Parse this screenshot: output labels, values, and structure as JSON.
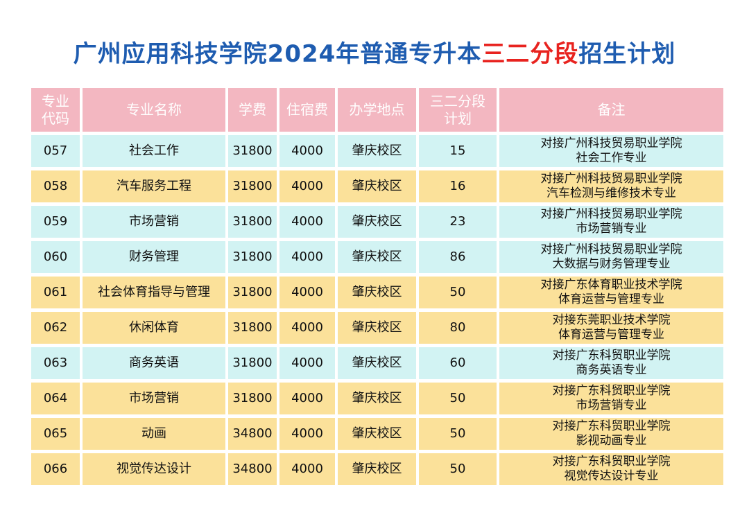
{
  "title": {
    "prefix": "广州应用科技学院2024年普通专升本",
    "highlight": "三二分段",
    "suffix": "招生计划"
  },
  "headers": {
    "code_line1": "专业",
    "code_line2": "代码",
    "name": "专业名称",
    "tuition": "学费",
    "dorm": "住宿费",
    "campus": "办学地点",
    "plan_line1": "三二分段",
    "plan_line2": "计划",
    "note": "备注"
  },
  "rows": [
    {
      "code": "057",
      "name": "社会工作",
      "tuition": "31800",
      "dorm": "4000",
      "campus": "肇庆校区",
      "plan": "15",
      "note1": "对接广州科技贸易职业学院",
      "note2": "社会工作专业"
    },
    {
      "code": "058",
      "name": "汽车服务工程",
      "tuition": "31800",
      "dorm": "4000",
      "campus": "肇庆校区",
      "plan": "16",
      "note1": "对接广州科技贸易职业学院",
      "note2": "汽车检测与维修技术专业"
    },
    {
      "code": "059",
      "name": "市场营销",
      "tuition": "31800",
      "dorm": "4000",
      "campus": "肇庆校区",
      "plan": "23",
      "note1": "对接广州科技贸易职业学院",
      "note2": "市场营销专业"
    },
    {
      "code": "060",
      "name": "财务管理",
      "tuition": "31800",
      "dorm": "4000",
      "campus": "肇庆校区",
      "plan": "86",
      "note1": "对接广州科技贸易职业学院",
      "note2": "大数据与财务管理专业"
    },
    {
      "code": "061",
      "name": "社会体育指导与管理",
      "tuition": "31800",
      "dorm": "4000",
      "campus": "肇庆校区",
      "plan": "50",
      "note1": "对接广东体育职业技术学院",
      "note2": "体育运营与管理专业"
    },
    {
      "code": "062",
      "name": "休闲体育",
      "tuition": "31800",
      "dorm": "4000",
      "campus": "肇庆校区",
      "plan": "80",
      "note1": "对接东莞职业技术学院",
      "note2": "体育运营与管理专业"
    },
    {
      "code": "063",
      "name": "商务英语",
      "tuition": "31800",
      "dorm": "4000",
      "campus": "肇庆校区",
      "plan": "60",
      "note1": "对接广东科贸职业学院",
      "note2": "商务英语专业"
    },
    {
      "code": "064",
      "name": "市场营销",
      "tuition": "31800",
      "dorm": "4000",
      "campus": "肇庆校区",
      "plan": "50",
      "note1": "对接广东科贸职业学院",
      "note2": "市场营销专业"
    },
    {
      "code": "065",
      "name": "动画",
      "tuition": "34800",
      "dorm": "4000",
      "campus": "肇庆校区",
      "plan": "50",
      "note1": "对接广东科贸职业学院",
      "note2": "影视动画专业"
    },
    {
      "code": "066",
      "name": "视觉传达设计",
      "tuition": "34800",
      "dorm": "4000",
      "campus": "肇庆校区",
      "plan": "50",
      "note1": "对接广东科贸职业学院",
      "note2": "视觉传达设计专业"
    }
  ],
  "colors": {
    "title": "#1e5cb0",
    "highlight": "#e8231f",
    "header_bg": "#f3b7c1",
    "row_cyan": "#d2f3f3",
    "row_yellow": "#fbe19a"
  }
}
